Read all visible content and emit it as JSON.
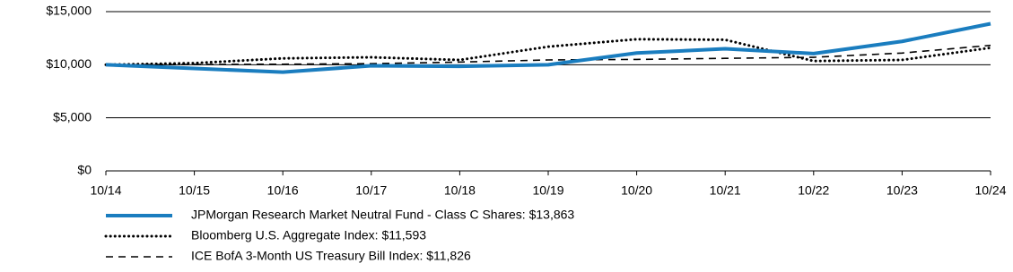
{
  "chart_data": {
    "type": "line",
    "categories": [
      "10/14",
      "10/15",
      "10/16",
      "10/17",
      "10/18",
      "10/19",
      "10/20",
      "10/21",
      "10/22",
      "10/23",
      "10/24"
    ],
    "ylim": [
      0,
      15000
    ],
    "yticks": [
      {
        "value": 0,
        "label": "$0"
      },
      {
        "value": 5000,
        "label": "$5,000"
      },
      {
        "value": 10000,
        "label": "$10,000"
      },
      {
        "value": 15000,
        "label": "$15,000"
      }
    ],
    "grid": true,
    "legend": "bottom",
    "series": [
      {
        "name": "JPMorgan Research Market Neutral Fund - Class C Shares: $13,863",
        "color": "#1a7dbf",
        "dash": "solid",
        "values": [
          10000,
          9650,
          9300,
          9900,
          9850,
          10000,
          11100,
          11500,
          11050,
          12200,
          13863
        ]
      },
      {
        "name": "Bloomberg U.S. Aggregate Index: $11,593",
        "color": "#000000",
        "dash": "dotted",
        "values": [
          10000,
          10150,
          10600,
          10700,
          10450,
          11700,
          12400,
          12350,
          10350,
          10450,
          11593
        ]
      },
      {
        "name": "ICE BofA 3-Month US Treasury Bill Index: $11,826",
        "color": "#000000",
        "dash": "dashed",
        "values": [
          10000,
          10020,
          10050,
          10100,
          10250,
          10450,
          10500,
          10600,
          10700,
          11100,
          11826
        ]
      }
    ]
  }
}
